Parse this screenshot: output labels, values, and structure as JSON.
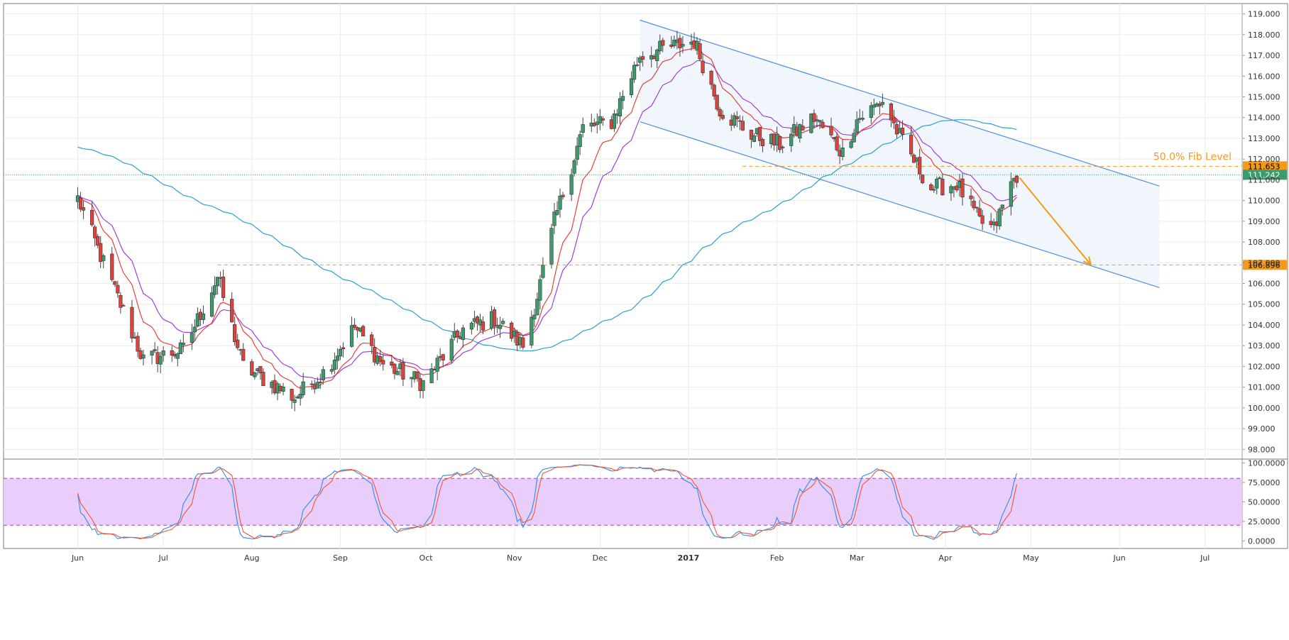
{
  "chart_data": [
    {
      "type": "candlestick",
      "title": "",
      "price_axis": {
        "ticks": [
          "98.000",
          "99.000",
          "100.000",
          "101.000",
          "102.000",
          "103.000",
          "104.000",
          "105.000",
          "106.000",
          "107.000",
          "108.000",
          "109.000",
          "110.000",
          "111.000",
          "112.000",
          "113.000",
          "114.000",
          "115.000",
          "116.000",
          "117.000",
          "118.000",
          "119.000"
        ],
        "ylim": [
          97.6,
          119.5
        ]
      },
      "time_axis": {
        "labels": [
          "Jun",
          "Jul",
          "Aug",
          "Sep",
          "Oct",
          "Nov",
          "Dec",
          "2017",
          "Feb",
          "Mar",
          "Apr",
          "May",
          "Jun",
          "Jul"
        ],
        "label_dates": [
          "2016-06-01",
          "2016-07-01",
          "2016-08-01",
          "2016-09-01",
          "2016-10-01",
          "2016-11-01",
          "2016-12-01",
          "2017-01-01",
          "2017-02-01",
          "2017-03-01",
          "2017-04-01",
          "2017-05-01",
          "2017-06-01",
          "2017-07-01"
        ]
      },
      "grid": true,
      "price_anchors": {
        "dates": [
          "2016-06-01",
          "2016-06-10",
          "2016-06-24",
          "2016-07-08",
          "2016-07-20",
          "2016-07-29",
          "2016-08-16",
          "2016-08-26",
          "2016-09-06",
          "2016-09-16",
          "2016-09-30",
          "2016-10-14",
          "2016-10-25",
          "2016-11-04",
          "2016-11-09",
          "2016-11-15",
          "2016-11-25",
          "2016-12-05",
          "2016-12-15",
          "2016-12-23",
          "2017-01-03",
          "2017-01-12",
          "2017-01-23",
          "2017-02-02",
          "2017-02-14",
          "2017-02-24",
          "2017-03-01",
          "2017-03-10",
          "2017-03-17",
          "2017-03-27",
          "2017-04-05",
          "2017-04-13",
          "2017-04-18",
          "2017-04-24",
          "2017-04-26"
        ],
        "closes": [
          110.1,
          107.0,
          102.3,
          102.8,
          106.3,
          102.0,
          100.5,
          101.7,
          103.9,
          102.1,
          101.2,
          103.8,
          104.3,
          103.0,
          105.4,
          109.0,
          113.5,
          113.8,
          117.0,
          117.3,
          117.7,
          114.4,
          113.2,
          112.7,
          114.0,
          112.3,
          113.9,
          114.8,
          112.8,
          110.6,
          110.8,
          109.0,
          108.6,
          110.8,
          111.24
        ]
      },
      "annotations": {
        "fib_label": "50.0% Fib Level",
        "fib_level": 111.653,
        "fib_level_label": "111.653",
        "support_level": 106.896,
        "support_level_label": "106.896",
        "last_price": 111.242,
        "last_price_label": "111.242",
        "support_line_start": "2016-07-20",
        "channel": {
          "upper_start": [
            "2016-12-15",
            118.7
          ],
          "upper_end": [
            "2017-06-15",
            110.7
          ],
          "lower_start": [
            "2016-12-15",
            113.8
          ],
          "lower_end": [
            "2017-06-15",
            105.8
          ]
        },
        "projection_arrow": {
          "from": [
            "2017-04-27",
            111.1
          ],
          "to": [
            "2017-05-22",
            106.9
          ]
        }
      },
      "colors": {
        "up_candle": "#3c9a6c",
        "down_candle": "#d9443f",
        "ema_fast": "#e8312c",
        "ema_mid": "#9a30e0",
        "ma_slow": "#2aa2cf",
        "channel": "#4f8fe0",
        "channel_fill": "#eef4fd",
        "fib_orange": "#f39a1b",
        "last_price_green": "#3c9a6c",
        "grid": "#ececec"
      }
    },
    {
      "type": "line",
      "title": "",
      "oscillator_axis": {
        "ticks": [
          "0.0000",
          "25.0000",
          "50.0000",
          "75.0000",
          "100.0000"
        ],
        "ylim": [
          -7,
          103
        ]
      },
      "bands": {
        "upper": 80,
        "lower": 20
      },
      "grid": true,
      "colors": {
        "band_fill": "#e7c8fb",
        "k_line": "#2e8de8",
        "d_line": "#f2563b",
        "band_line": "#9c4a9c"
      }
    }
  ]
}
